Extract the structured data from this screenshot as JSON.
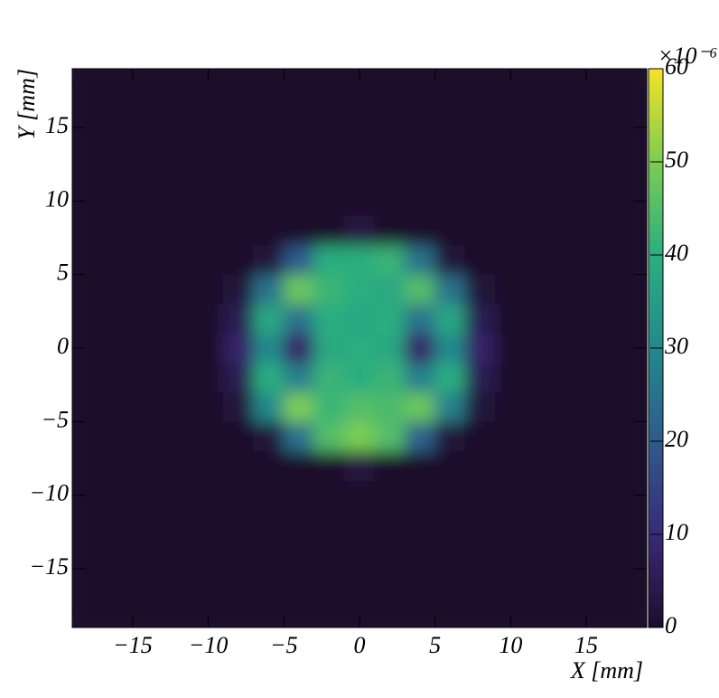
{
  "chart_data": {
    "type": "heatmap",
    "xlabel": "X [mm]",
    "ylabel": "Y [mm]",
    "z_multiplier": "×10⁻⁶",
    "xbins": [
      -19,
      -17,
      -15,
      -13,
      -11,
      -9,
      -7,
      -5,
      -3,
      -1,
      1,
      3,
      5,
      7,
      9,
      11,
      13,
      15,
      17,
      19
    ],
    "ybins": [
      -19,
      -17,
      -15,
      -13,
      -11,
      -9,
      -7,
      -5,
      -3,
      -1,
      1,
      3,
      5,
      7,
      9,
      11,
      13,
      15,
      17,
      19
    ],
    "z": [
      [
        0,
        0,
        0,
        0,
        0,
        0,
        0,
        0,
        0,
        0,
        0,
        0,
        0,
        0,
        0,
        0,
        0,
        0,
        0
      ],
      [
        0,
        0,
        0,
        0,
        0,
        0,
        0,
        0,
        0,
        0,
        0,
        0,
        0,
        0,
        0,
        0,
        0,
        0,
        0
      ],
      [
        0,
        0,
        0,
        0,
        0,
        0,
        0,
        0,
        0,
        0,
        0,
        0,
        0,
        0,
        0,
        0,
        0,
        0,
        0
      ],
      [
        0,
        0,
        0,
        0,
        0,
        0,
        0,
        0,
        0,
        0,
        0,
        0,
        0,
        0,
        0,
        0,
        0,
        0,
        0
      ],
      [
        0,
        0,
        0,
        0,
        0,
        0,
        0,
        0,
        0,
        0,
        0,
        0,
        0,
        0,
        0,
        0,
        0,
        0,
        0
      ],
      [
        0,
        0,
        0,
        0,
        0,
        0,
        0,
        0,
        0,
        3,
        0,
        0,
        0,
        0,
        0,
        0,
        0,
        0,
        0
      ],
      [
        0,
        0,
        0,
        0,
        0,
        0,
        2,
        25,
        45,
        50,
        45,
        22,
        2,
        0,
        0,
        0,
        0,
        0,
        0
      ],
      [
        0,
        0,
        0,
        0,
        0,
        2,
        30,
        50,
        42,
        45,
        44,
        48,
        28,
        2,
        0,
        0,
        0,
        0,
        0
      ],
      [
        0,
        0,
        0,
        0,
        0,
        5,
        40,
        28,
        42,
        40,
        42,
        28,
        40,
        5,
        0,
        0,
        0,
        0,
        0
      ],
      [
        0,
        0,
        0,
        0,
        0,
        8,
        30,
        8,
        38,
        40,
        38,
        8,
        30,
        8,
        0,
        0,
        0,
        0,
        0
      ],
      [
        0,
        0,
        0,
        0,
        0,
        5,
        38,
        25,
        40,
        38,
        40,
        25,
        38,
        5,
        0,
        0,
        0,
        0,
        0
      ],
      [
        0,
        0,
        0,
        0,
        0,
        2,
        25,
        48,
        42,
        40,
        38,
        45,
        25,
        2,
        0,
        0,
        0,
        0,
        0
      ],
      [
        0,
        0,
        0,
        0,
        0,
        0,
        2,
        20,
        40,
        40,
        42,
        25,
        2,
        0,
        0,
        0,
        0,
        0,
        0
      ],
      [
        0,
        0,
        0,
        0,
        0,
        0,
        0,
        0,
        0,
        3,
        0,
        0,
        0,
        0,
        0,
        0,
        0,
        0,
        0
      ],
      [
        0,
        0,
        0,
        0,
        0,
        0,
        0,
        0,
        0,
        0,
        0,
        0,
        0,
        0,
        0,
        0,
        0,
        0,
        0
      ],
      [
        0,
        0,
        0,
        0,
        0,
        0,
        0,
        0,
        0,
        0,
        0,
        0,
        0,
        0,
        0,
        0,
        0,
        0,
        0
      ],
      [
        0,
        0,
        0,
        0,
        0,
        0,
        0,
        0,
        0,
        0,
        0,
        0,
        0,
        0,
        0,
        0,
        0,
        0,
        0
      ],
      [
        0,
        0,
        0,
        0,
        0,
        0,
        0,
        0,
        0,
        0,
        0,
        0,
        0,
        0,
        0,
        0,
        0,
        0,
        0
      ],
      [
        0,
        0,
        0,
        0,
        0,
        0,
        0,
        0,
        0,
        0,
        0,
        0,
        0,
        0,
        0,
        0,
        0,
        0,
        0
      ]
    ],
    "xlim": [
      -19,
      19
    ],
    "ylim": [
      -19,
      19
    ],
    "zlim": [
      0,
      60
    ],
    "xticks": [
      {
        "value": -15,
        "label": "−15"
      },
      {
        "value": -10,
        "label": "−10"
      },
      {
        "value": -5,
        "label": "−5"
      },
      0,
      5,
      10,
      15
    ],
    "yticks": [
      {
        "value": -15,
        "label": "−15"
      },
      {
        "value": -10,
        "label": "−10"
      },
      {
        "value": -5,
        "label": "−5"
      },
      0,
      5,
      10,
      15
    ],
    "zticks": [
      0,
      10,
      20,
      30,
      40,
      50,
      60
    ],
    "colormap": [
      "#1e0c2c",
      "#3a2a78",
      "#2f5b8c",
      "#23898d",
      "#2bae7f",
      "#7ccd52",
      "#f5e323"
    ]
  }
}
